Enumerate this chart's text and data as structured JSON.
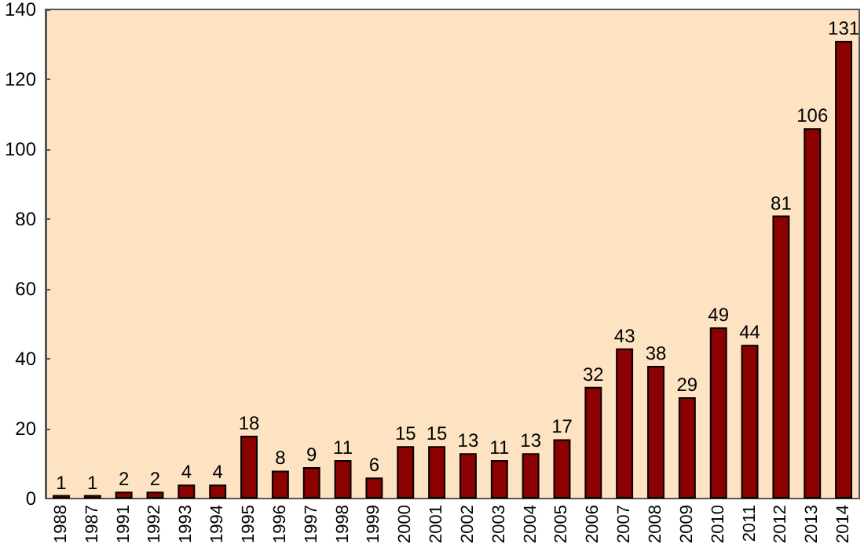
{
  "chart_data": {
    "type": "bar",
    "categories": [
      "1988",
      "1987",
      "1991",
      "1992",
      "1993",
      "1994",
      "1995",
      "1996",
      "1997",
      "1998",
      "1999",
      "2000",
      "2001",
      "2002",
      "2003",
      "2004",
      "2005",
      "2006",
      "2007",
      "2008",
      "2009",
      "2010",
      "2011",
      "2012",
      "2013",
      "2014"
    ],
    "values": [
      1,
      1,
      2,
      2,
      4,
      4,
      18,
      8,
      9,
      11,
      6,
      15,
      15,
      13,
      11,
      13,
      17,
      32,
      43,
      38,
      29,
      49,
      44,
      81,
      106,
      131
    ],
    "color": "#8b0000",
    "ylim": [
      0,
      140
    ],
    "yticks": [
      0,
      20,
      40,
      60,
      80,
      100,
      120,
      140
    ],
    "grid": false,
    "data_labels": true
  }
}
